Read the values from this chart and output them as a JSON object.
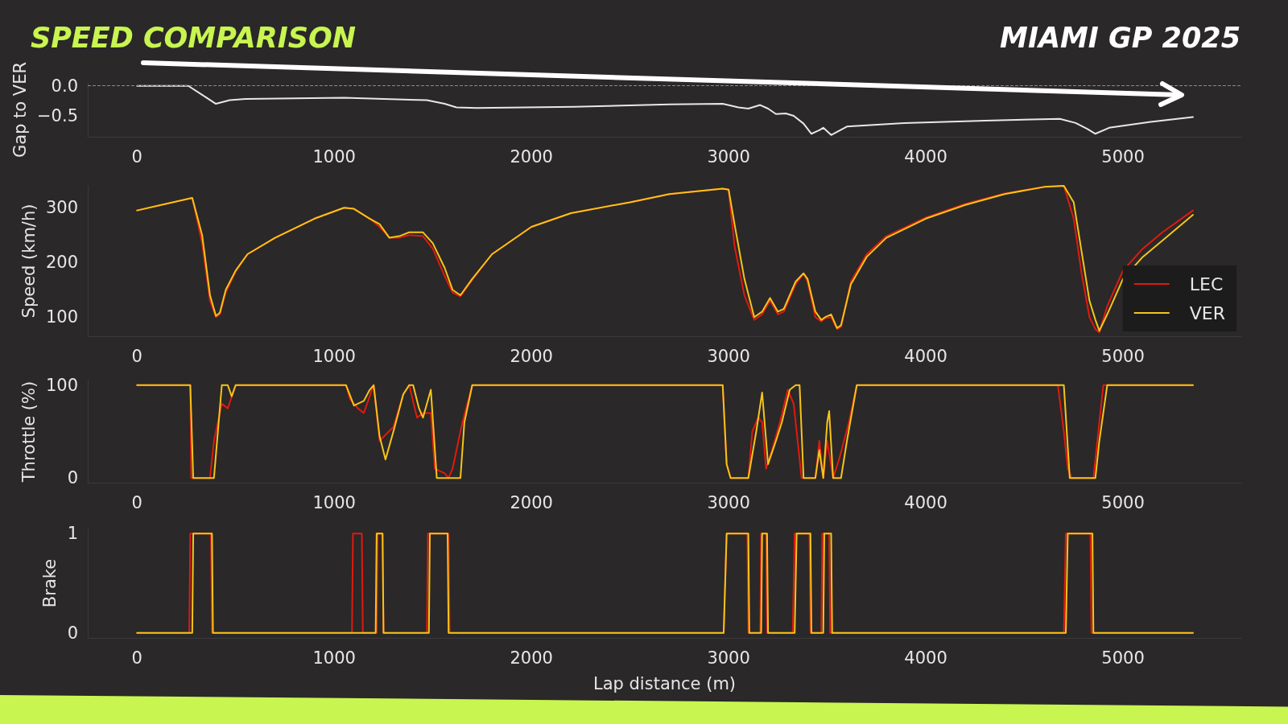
{
  "chart_data": [
    {
      "type": "line",
      "title": "SPEED COMPARISON",
      "subtitle": "MIAMI GP 2025",
      "ylabel": "Gap to VER",
      "xlim": [
        -250,
        5600
      ],
      "xticks": [
        0,
        1000,
        2000,
        3000,
        4000,
        5000
      ],
      "ylim": [
        -0.85,
        0.05
      ],
      "yticks": [
        {
          "value": -0.5,
          "label": "−0.5"
        },
        {
          "value": 0,
          "label": "0.0"
        }
      ],
      "grid": false,
      "legend": false,
      "ref_lines": [
        {
          "axis": "y",
          "value": 0,
          "color": "#8a8a8a",
          "line_style": "dashed"
        }
      ],
      "series": [
        {
          "color": "#e8e8e8",
          "x": [
            0,
            260,
            330,
            400,
            470,
            550,
            800,
            1050,
            1250,
            1470,
            1560,
            1620,
            1720,
            2220,
            2700,
            2970,
            3050,
            3100,
            3160,
            3200,
            3240,
            3290,
            3330,
            3380,
            3420,
            3460,
            3480,
            3520,
            3600,
            3890,
            4300,
            4680,
            4760,
            4820,
            4860,
            4930,
            5140,
            5355
          ],
          "values": [
            0,
            0,
            -0.15,
            -0.3,
            -0.24,
            -0.22,
            -0.21,
            -0.2,
            -0.22,
            -0.24,
            -0.3,
            -0.36,
            -0.37,
            -0.35,
            -0.31,
            -0.3,
            -0.36,
            -0.38,
            -0.32,
            -0.38,
            -0.47,
            -0.46,
            -0.5,
            -0.63,
            -0.8,
            -0.74,
            -0.7,
            -0.82,
            -0.68,
            -0.62,
            -0.58,
            -0.55,
            -0.62,
            -0.72,
            -0.8,
            -0.7,
            -0.6,
            -0.52
          ]
        }
      ]
    },
    {
      "type": "line",
      "ylabel": "Speed (km/h)",
      "xlim": [
        -250,
        5600
      ],
      "xticks": [
        0,
        1000,
        2000,
        3000,
        4000,
        5000
      ],
      "ylim": [
        65,
        340
      ],
      "yticks": [
        100,
        200,
        300
      ],
      "grid": false,
      "legend": "bottom right",
      "series": [
        {
          "name": "LEC",
          "color": "#e01a10",
          "x": [
            0,
            280,
            330,
            370,
            400,
            420,
            450,
            500,
            560,
            700,
            900,
            1050,
            1100,
            1180,
            1230,
            1280,
            1330,
            1380,
            1450,
            1500,
            1560,
            1600,
            1640,
            1700,
            1800,
            2000,
            2200,
            2500,
            2700,
            2970,
            3000,
            3030,
            3080,
            3130,
            3170,
            3210,
            3250,
            3280,
            3340,
            3380,
            3400,
            3440,
            3470,
            3490,
            3520,
            3550,
            3570,
            3620,
            3700,
            3800,
            4000,
            4200,
            4400,
            4600,
            4700,
            4750,
            4790,
            4830,
            4860,
            4880,
            4920,
            5000,
            5100,
            5200,
            5355
          ],
          "values": [
            295,
            318,
            235,
            130,
            100,
            105,
            145,
            183,
            215,
            245,
            280,
            300,
            298,
            280,
            265,
            245,
            245,
            250,
            248,
            225,
            175,
            145,
            138,
            168,
            215,
            265,
            290,
            310,
            325,
            335,
            333,
            230,
            140,
            95,
            105,
            130,
            105,
            110,
            160,
            180,
            165,
            100,
            92,
            98,
            100,
            78,
            82,
            165,
            215,
            248,
            282,
            307,
            326,
            338,
            340,
            280,
            180,
            100,
            78,
            72,
            120,
            185,
            225,
            255,
            295
          ]
        },
        {
          "name": "VER",
          "color": "#f5c518",
          "x": [
            0,
            280,
            330,
            370,
            400,
            420,
            450,
            500,
            560,
            700,
            900,
            1050,
            1100,
            1180,
            1230,
            1280,
            1330,
            1380,
            1450,
            1500,
            1560,
            1600,
            1640,
            1700,
            1800,
            2000,
            2200,
            2500,
            2700,
            2970,
            3000,
            3030,
            3080,
            3130,
            3170,
            3210,
            3250,
            3280,
            3340,
            3380,
            3400,
            3440,
            3470,
            3490,
            3520,
            3550,
            3570,
            3620,
            3700,
            3800,
            4000,
            4200,
            4400,
            4600,
            4700,
            4750,
            4790,
            4830,
            4860,
            4880,
            4920,
            5000,
            5100,
            5200,
            5355
          ],
          "values": [
            295,
            318,
            250,
            140,
            102,
            108,
            150,
            185,
            215,
            245,
            280,
            300,
            298,
            280,
            270,
            245,
            248,
            255,
            255,
            235,
            190,
            150,
            140,
            170,
            215,
            265,
            290,
            310,
            325,
            335,
            333,
            270,
            170,
            100,
            110,
            135,
            110,
            115,
            165,
            180,
            170,
            110,
            95,
            100,
            105,
            80,
            85,
            160,
            210,
            245,
            280,
            305,
            325,
            338,
            340,
            310,
            220,
            130,
            95,
            75,
            105,
            170,
            210,
            240,
            287
          ]
        }
      ]
    },
    {
      "type": "line",
      "ylabel": "Throttle (%)",
      "xlim": [
        -250,
        5600
      ],
      "xticks": [
        0,
        1000,
        2000,
        3000,
        4000,
        5000
      ],
      "ylim": [
        -5,
        105
      ],
      "yticks": [
        0,
        100
      ],
      "grid": false,
      "legend": false,
      "series": [
        {
          "color": "#e01a10",
          "x": [
            0,
            270,
            275,
            370,
            390,
            410,
            430,
            460,
            500,
            1060,
            1080,
            1120,
            1150,
            1200,
            1230,
            1300,
            1350,
            1380,
            1420,
            1450,
            1490,
            1510,
            1560,
            1580,
            1600,
            1650,
            1700,
            2970,
            2990,
            3010,
            3100,
            3120,
            3150,
            3170,
            3190,
            3220,
            3260,
            3300,
            3330,
            3360,
            3370,
            3440,
            3460,
            3480,
            3500,
            3530,
            3560,
            3610,
            3650,
            4670,
            4700,
            4720,
            4740,
            4850,
            4870,
            4900,
            5355
          ],
          "values": [
            100,
            100,
            0,
            0,
            40,
            60,
            80,
            75,
            100,
            100,
            85,
            75,
            70,
            100,
            40,
            55,
            90,
            100,
            65,
            70,
            70,
            10,
            5,
            0,
            10,
            60,
            100,
            100,
            15,
            0,
            0,
            50,
            65,
            60,
            10,
            30,
            60,
            95,
            80,
            20,
            0,
            0,
            40,
            0,
            40,
            0,
            20,
            60,
            100,
            100,
            50,
            10,
            0,
            0,
            40,
            100,
            100
          ]
        },
        {
          "color": "#f5c518",
          "x": [
            0,
            270,
            285,
            390,
            430,
            460,
            480,
            500,
            1060,
            1100,
            1150,
            1180,
            1200,
            1230,
            1260,
            1300,
            1350,
            1380,
            1400,
            1430,
            1450,
            1490,
            1520,
            1640,
            1660,
            1700,
            2970,
            2990,
            3010,
            3100,
            3140,
            3170,
            3200,
            3240,
            3270,
            3310,
            3340,
            3360,
            3380,
            3440,
            3460,
            3480,
            3500,
            3510,
            3530,
            3570,
            3600,
            3650,
            4700,
            4730,
            4860,
            4880,
            4920,
            5355
          ],
          "values": [
            100,
            100,
            0,
            0,
            100,
            100,
            88,
            100,
            100,
            78,
            83,
            95,
            100,
            45,
            20,
            50,
            90,
            100,
            100,
            75,
            65,
            95,
            0,
            0,
            60,
            100,
            100,
            15,
            0,
            0,
            50,
            92,
            15,
            40,
            60,
            95,
            100,
            100,
            0,
            0,
            30,
            0,
            60,
            72,
            0,
            0,
            40,
            100,
            100,
            0,
            0,
            40,
            100,
            100
          ]
        }
      ]
    },
    {
      "type": "line",
      "ylabel": "Brake",
      "xlabel": "Lap distance (m)",
      "xlim": [
        -250,
        5600
      ],
      "xticks": [
        0,
        1000,
        2000,
        3000,
        4000,
        5000
      ],
      "ylim": [
        -0.05,
        1.05
      ],
      "yticks": [
        0,
        1
      ],
      "grid": false,
      "legend": false,
      "series": [
        {
          "color": "#e01a10",
          "x": [
            0,
            265,
            270,
            375,
            380,
            1090,
            1095,
            1140,
            1145,
            1215,
            1220,
            1245,
            1250,
            1470,
            1475,
            1580,
            1585,
            2975,
            2990,
            3095,
            3100,
            3160,
            3165,
            3190,
            3195,
            3325,
            3335,
            3410,
            3415,
            3470,
            3475,
            3510,
            3515,
            4700,
            4710,
            4835,
            4840,
            5355
          ],
          "values": [
            0,
            0,
            1,
            1,
            0,
            0,
            1,
            1,
            0,
            0,
            1,
            1,
            0,
            0,
            1,
            1,
            0,
            0,
            1,
            1,
            0,
            0,
            1,
            1,
            0,
            0,
            1,
            1,
            0,
            0,
            1,
            1,
            0,
            0,
            1,
            1,
            0,
            0
          ]
        },
        {
          "color": "#f5c518",
          "x": [
            0,
            280,
            285,
            380,
            385,
            1210,
            1215,
            1245,
            1250,
            1480,
            1485,
            1575,
            1580,
            2975,
            2990,
            3100,
            3105,
            3165,
            3170,
            3195,
            3200,
            3335,
            3345,
            3415,
            3420,
            3480,
            3485,
            3520,
            3525,
            4710,
            4720,
            4845,
            4850,
            5355
          ],
          "values": [
            0,
            0,
            1,
            1,
            0,
            0,
            1,
            1,
            0,
            0,
            1,
            1,
            0,
            0,
            1,
            1,
            0,
            0,
            1,
            1,
            0,
            0,
            1,
            1,
            0,
            0,
            1,
            1,
            0,
            0,
            1,
            1,
            0,
            0
          ]
        }
      ]
    }
  ]
}
